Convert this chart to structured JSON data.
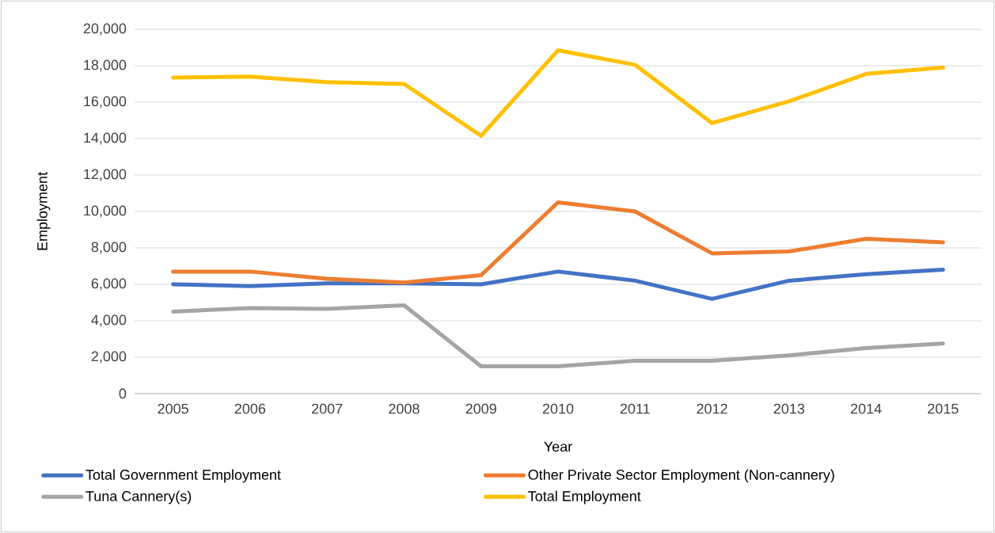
{
  "chart_data": {
    "type": "line",
    "xlabel": "Year",
    "ylabel": "Employment",
    "categories": [
      "2005",
      "2006",
      "2007",
      "2008",
      "2009",
      "2010",
      "2011",
      "2012",
      "2013",
      "2014",
      "2015"
    ],
    "series": [
      {
        "name": "Total Government Employment",
        "color": "#4472c4",
        "values": [
          6000,
          5900,
          6050,
          6050,
          6000,
          6700,
          6200,
          5200,
          6200,
          6550,
          6800
        ]
      },
      {
        "name": "Other Private Sector Employment (Non-cannery)",
        "color": "#ed7d31",
        "values": [
          6700,
          6700,
          6300,
          6100,
          6500,
          10500,
          10000,
          7700,
          7800,
          8500,
          8300
        ]
      },
      {
        "name": "Tuna Cannery(s)",
        "color": "#a5a5a5",
        "values": [
          4500,
          4700,
          4650,
          4850,
          1500,
          1500,
          1800,
          1800,
          2100,
          2500,
          2750
        ]
      },
      {
        "name": "Total Employment",
        "color": "#ffc000",
        "values": [
          17350,
          17400,
          17100,
          17000,
          14150,
          18850,
          18050,
          14850,
          16050,
          17550,
          17900
        ]
      }
    ],
    "ylim": [
      0,
      20000
    ],
    "yticks": [
      {
        "value": 0,
        "label": "0"
      },
      {
        "value": 2000,
        "label": "2,000"
      },
      {
        "value": 4000,
        "label": "4,000"
      },
      {
        "value": 6000,
        "label": "6,000"
      },
      {
        "value": 8000,
        "label": "8,000"
      },
      {
        "value": 10000,
        "label": "10,000"
      },
      {
        "value": 12000,
        "label": "12,000"
      },
      {
        "value": 14000,
        "label": "14,000"
      },
      {
        "value": 16000,
        "label": "16,000"
      },
      {
        "value": 18000,
        "label": "18,000"
      },
      {
        "value": 20000,
        "label": "20,000"
      }
    ],
    "grid": "y",
    "legend": "bottom"
  }
}
